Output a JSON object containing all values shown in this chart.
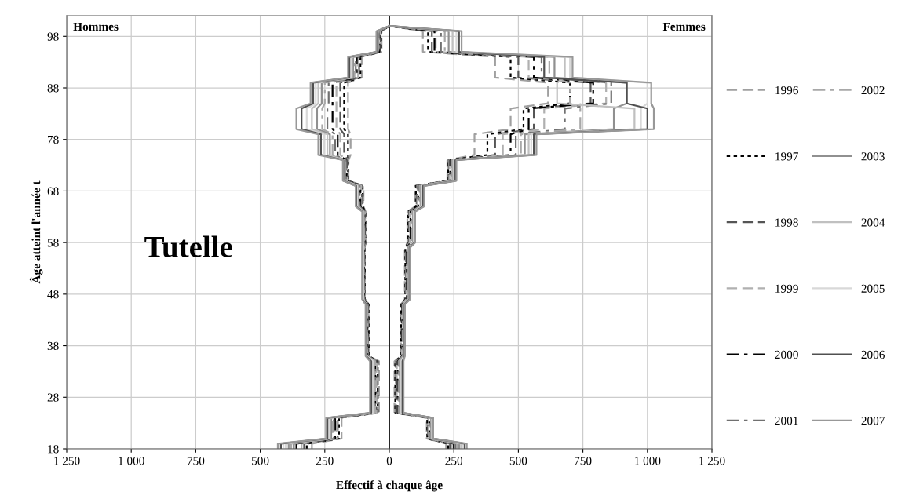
{
  "chart_data": {
    "type": "line",
    "orientation": "horizontal",
    "xlabel": "Effectif à chaque âge",
    "ylabel": "Âge atteint l'année t",
    "annotations": [
      "Hommes",
      "Femmes",
      "Tutelle"
    ],
    "x": [
      18,
      19,
      20,
      24,
      25,
      35,
      36,
      46,
      47,
      57,
      58,
      64,
      65,
      69,
      70,
      74,
      75,
      79,
      80,
      84,
      85,
      89,
      90,
      94,
      95,
      99,
      100
    ],
    "xlim": [
      -1250,
      1250
    ],
    "ylim": [
      18,
      102
    ],
    "xticks": [
      {
        "value": -1250,
        "label": "1 250"
      },
      {
        "value": -1000,
        "label": "1 000"
      },
      {
        "value": -750,
        "label": "750"
      },
      {
        "value": -500,
        "label": "500"
      },
      {
        "value": -250,
        "label": "250"
      },
      0,
      250,
      500,
      750,
      {
        "value": 1000,
        "label": "1 000"
      },
      {
        "value": 1250,
        "label": "1 250"
      }
    ],
    "yticks": [
      18,
      28,
      38,
      48,
      58,
      68,
      78,
      88,
      98
    ],
    "grid": true,
    "legend": "right",
    "ref_lines": [
      {
        "axis": "x",
        "value": 0,
        "color": "#000000"
      }
    ],
    "series": [
      {
        "name": "1996",
        "color": "#a0a0a0",
        "line_style": "dashed",
        "values": [
          -300,
          -300,
          -185,
          -185,
          -40,
          -40,
          -80,
          -80,
          -95,
          -95,
          -92,
          -92,
          -100,
          -100,
          -158,
          -158,
          -150,
          -150,
          -160,
          -160,
          -160,
          -160,
          -107,
          -107,
          -30,
          -30,
          0
        ]
      },
      {
        "name": "1997",
        "color": "#000000",
        "line_style": "dotted",
        "values": [
          -320,
          -320,
          -195,
          -195,
          -45,
          -45,
          -80,
          -80,
          -95,
          -95,
          -93,
          -93,
          -103,
          -103,
          -160,
          -160,
          -160,
          -160,
          -175,
          -175,
          -175,
          -175,
          -112,
          -112,
          -32,
          -32,
          0
        ]
      },
      {
        "name": "1998",
        "color": "#555555",
        "line_style": "dashed",
        "values": [
          -330,
          -330,
          -200,
          -200,
          -50,
          -50,
          -82,
          -82,
          -96,
          -96,
          -94,
          -94,
          -106,
          -106,
          -162,
          -162,
          -175,
          -175,
          -190,
          -190,
          -190,
          -190,
          -117,
          -117,
          -34,
          -34,
          0
        ]
      },
      {
        "name": "1999",
        "color": "#b0b0b0",
        "line_style": "dashed",
        "values": [
          -340,
          -340,
          -205,
          -205,
          -50,
          -50,
          -84,
          -84,
          -97,
          -97,
          -95,
          -95,
          -109,
          -109,
          -164,
          -164,
          -190,
          -190,
          -205,
          -205,
          -205,
          -205,
          -121,
          -121,
          -36,
          -36,
          0
        ]
      },
      {
        "name": "2000",
        "color": "#000000",
        "line_style": "dashdot",
        "values": [
          -360,
          -360,
          -210,
          -210,
          -55,
          -55,
          -85,
          -85,
          -98,
          -98,
          -96,
          -96,
          -112,
          -112,
          -166,
          -166,
          -200,
          -200,
          -220,
          -220,
          -220,
          -220,
          -126,
          -126,
          -38,
          -38,
          0
        ]
      },
      {
        "name": "2001",
        "color": "#707070",
        "line_style": "dashdot",
        "values": [
          -370,
          -370,
          -215,
          -215,
          -55,
          -55,
          -85,
          -85,
          -98,
          -98,
          -97,
          -97,
          -115,
          -115,
          -168,
          -168,
          -210,
          -210,
          -240,
          -240,
          -235,
          -235,
          -130,
          -130,
          -40,
          -40,
          0
        ]
      },
      {
        "name": "2002",
        "color": "#a8a8a8",
        "line_style": "dashdot",
        "values": [
          -380,
          -380,
          -220,
          -220,
          -55,
          -55,
          -86,
          -86,
          -100,
          -100,
          -98,
          -98,
          -118,
          -118,
          -170,
          -170,
          -220,
          -220,
          -260,
          -260,
          -250,
          -250,
          -135,
          -135,
          -42,
          -42,
          0
        ]
      },
      {
        "name": "2003",
        "color": "#909090",
        "line_style": "solid",
        "values": [
          -390,
          -390,
          -225,
          -225,
          -60,
          -60,
          -88,
          -88,
          -100,
          -100,
          -99,
          -99,
          -120,
          -120,
          -172,
          -172,
          -230,
          -230,
          -280,
          -280,
          -262,
          -262,
          -140,
          -140,
          -44,
          -44,
          0
        ]
      },
      {
        "name": "2004",
        "color": "#c0c0c0",
        "line_style": "solid",
        "values": [
          -400,
          -400,
          -230,
          -230,
          -60,
          -60,
          -88,
          -88,
          -102,
          -102,
          -100,
          -100,
          -123,
          -123,
          -174,
          -174,
          -240,
          -240,
          -300,
          -300,
          -275,
          -275,
          -145,
          -145,
          -46,
          -46,
          0
        ]
      },
      {
        "name": "2005",
        "color": "#d8d8d8",
        "line_style": "solid",
        "values": [
          -410,
          -410,
          -235,
          -235,
          -65,
          -65,
          -90,
          -90,
          -102,
          -102,
          -102,
          -102,
          -125,
          -125,
          -176,
          -176,
          -255,
          -255,
          -320,
          -320,
          -285,
          -285,
          -150,
          -150,
          -47,
          -47,
          0
        ]
      },
      {
        "name": "2006",
        "color": "#505050",
        "line_style": "solid",
        "values": [
          -420,
          -420,
          -240,
          -240,
          -70,
          -70,
          -90,
          -90,
          -104,
          -104,
          -103,
          -103,
          -128,
          -128,
          -178,
          -178,
          -265,
          -265,
          -340,
          -340,
          -295,
          -295,
          -155,
          -155,
          -48,
          -48,
          0
        ]
      },
      {
        "name": "2007",
        "color": "#989898",
        "line_style": "solid",
        "values": [
          -432,
          -432,
          -245,
          -245,
          -75,
          -75,
          -92,
          -92,
          -105,
          -105,
          -105,
          -105,
          -130,
          -130,
          -180,
          -180,
          -275,
          -275,
          -360,
          -360,
          -305,
          -305,
          -160,
          -160,
          -50,
          -50,
          0
        ]
      },
      {
        "color": "#a0a0a0",
        "line_style": "dashed",
        "values": [
          220,
          220,
          145,
          145,
          20,
          20,
          45,
          45,
          60,
          60,
          70,
          70,
          100,
          100,
          225,
          225,
          330,
          330,
          470,
          470,
          615,
          615,
          410,
          410,
          130,
          130,
          0
        ]
      },
      {
        "color": "#000000",
        "line_style": "dotted",
        "values": [
          228,
          228,
          147,
          147,
          23,
          23,
          46,
          46,
          62,
          62,
          73,
          73,
          103,
          103,
          228,
          228,
          380,
          380,
          520,
          520,
          700,
          700,
          470,
          470,
          150,
          150,
          0
        ]
      },
      {
        "color": "#555555",
        "line_style": "dashed",
        "values": [
          235,
          235,
          150,
          150,
          26,
          26,
          48,
          48,
          64,
          64,
          76,
          76,
          106,
          106,
          230,
          230,
          410,
          410,
          560,
          560,
          780,
          780,
          500,
          500,
          165,
          165,
          0
        ]
      },
      {
        "color": "#b0b0b0",
        "line_style": "dashed",
        "values": [
          242,
          242,
          152,
          152,
          29,
          29,
          49,
          49,
          66,
          66,
          79,
          79,
          109,
          109,
          233,
          233,
          440,
          440,
          600,
          600,
          840,
          840,
          540,
          540,
          180,
          180,
          0
        ]
      },
      {
        "color": "#000000",
        "line_style": "dashdot",
        "values": [
          250,
          250,
          155,
          155,
          32,
          32,
          50,
          50,
          68,
          68,
          82,
          82,
          112,
          112,
          236,
          236,
          470,
          470,
          540,
          540,
          790,
          790,
          560,
          560,
          175,
          175,
          0
        ]
      },
      {
        "color": "#707070",
        "line_style": "dashdot",
        "values": [
          257,
          257,
          157,
          157,
          35,
          35,
          52,
          52,
          70,
          70,
          85,
          85,
          115,
          115,
          239,
          239,
          490,
          490,
          680,
          680,
          860,
          860,
          590,
          590,
          200,
          200,
          0
        ]
      },
      {
        "color": "#a8a8a8",
        "line_style": "dashdot",
        "values": [
          264,
          264,
          160,
          160,
          38,
          38,
          53,
          53,
          72,
          72,
          88,
          88,
          118,
          118,
          242,
          242,
          510,
          510,
          740,
          740,
          700,
          700,
          620,
          620,
          215,
          215,
          0
        ]
      },
      {
        "color": "#909090",
        "line_style": "solid",
        "values": [
          271,
          271,
          162,
          162,
          41,
          41,
          55,
          55,
          74,
          74,
          91,
          91,
          121,
          121,
          245,
          245,
          525,
          525,
          870,
          870,
          920,
          920,
          640,
          640,
          230,
          230,
          0
        ]
      },
      {
        "color": "#c0c0c0",
        "line_style": "solid",
        "values": [
          278,
          278,
          165,
          165,
          44,
          44,
          56,
          56,
          76,
          76,
          94,
          94,
          124,
          124,
          248,
          248,
          540,
          540,
          950,
          950,
          650,
          650,
          680,
          680,
          245,
          245,
          0
        ]
      },
      {
        "color": "#d8d8d8",
        "line_style": "solid",
        "values": [
          285,
          285,
          167,
          167,
          47,
          47,
          58,
          58,
          77,
          77,
          96,
          96,
          128,
          128,
          252,
          252,
          550,
          550,
          975,
          975,
          1000,
          1000,
          700,
          700,
          260,
          260,
          0
        ]
      },
      {
        "color": "#505050",
        "line_style": "solid",
        "values": [
          292,
          292,
          169,
          169,
          51,
          51,
          59,
          59,
          78,
          78,
          98,
          98,
          131,
          131,
          256,
          256,
          560,
          560,
          1000,
          1000,
          920,
          920,
          600,
          600,
          270,
          270,
          0
        ]
      },
      {
        "color": "#989898",
        "line_style": "solid",
        "values": [
          300,
          300,
          170,
          170,
          55,
          55,
          60,
          60,
          80,
          80,
          100,
          100,
          135,
          135,
          260,
          260,
          570,
          570,
          1025,
          1025,
          1015,
          1015,
          710,
          710,
          280,
          280,
          0
        ]
      }
    ]
  }
}
